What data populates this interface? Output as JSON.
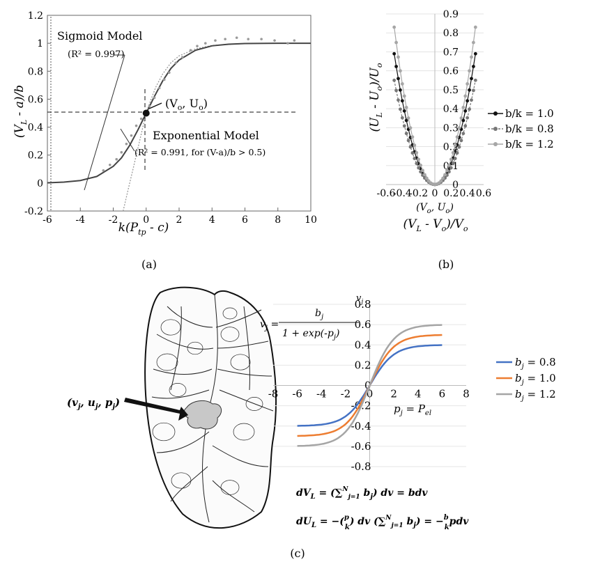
{
  "chart_data": [
    {
      "panel": "(a)",
      "type": "scatter",
      "xlabel_parts": {
        "k": "k",
        "P": "(P",
        "tp": "tp",
        "c": " - c)"
      },
      "ylabel_parts": {
        "open": "(V",
        "L": "L",
        "rest": " - a)/b"
      },
      "xlim": [
        -6,
        10
      ],
      "ylim": [
        -0.2,
        1.2
      ],
      "x_ticks": [
        "-6",
        "-4",
        "-2",
        "0",
        "2",
        "4",
        "6",
        "8",
        "10"
      ],
      "y_ticks": [
        "-0.2",
        "0",
        "0.2",
        "0.4",
        "0.6",
        "0.8",
        "1",
        "1.2"
      ],
      "annotations": {
        "sigmoid_title": "Sigmoid Model",
        "sigmoid_r2": "(R² = 0.997)",
        "point": "(V",
        "point_o": "o",
        "point_mid": ", U",
        "point_end": ")",
        "exp_title": "Exponential Model",
        "exp_r2": "(R² = 0.991, for (V-a)/b > 0.5)"
      },
      "highlight_point": {
        "x": 0,
        "y": 0.5
      },
      "sigmoid_curve": {
        "x": [
          -6,
          -5,
          -4,
          -3,
          -2,
          -1.5,
          -1,
          -0.5,
          0,
          0.5,
          1,
          1.5,
          2,
          3,
          4,
          5,
          6,
          8,
          10
        ],
        "y": [
          0.002,
          0.007,
          0.018,
          0.047,
          0.12,
          0.18,
          0.27,
          0.38,
          0.5,
          0.62,
          0.73,
          0.82,
          0.88,
          0.95,
          0.982,
          0.993,
          0.998,
          1.0,
          1.0
        ]
      },
      "exponential_curve": {
        "x": [
          -1.4,
          -1.2,
          -1,
          -0.8,
          -0.6,
          -0.4,
          -0.2,
          0,
          0.3,
          0.6,
          1,
          1.5,
          2,
          3,
          4,
          6,
          8
        ],
        "y": [
          -0.2,
          -0.1,
          0,
          0.1,
          0.2,
          0.3,
          0.4,
          0.5,
          0.6,
          0.69,
          0.78,
          0.86,
          0.91,
          0.96,
          0.985,
          0.998,
          1.0
        ]
      },
      "scatter_points": {
        "x": [
          -2.6,
          -2.2,
          -1.8,
          -1.5,
          -1.2,
          -0.9,
          -0.6,
          -0.3,
          0.2,
          0.5,
          0.8,
          1.1,
          1.4,
          1.8,
          2.2,
          2.7,
          3.1,
          3.6,
          4.2,
          4.8,
          5.5,
          6.2,
          7.0,
          7.8,
          8.6,
          9.0
        ],
        "y": [
          0.09,
          0.13,
          0.17,
          0.22,
          0.28,
          0.34,
          0.41,
          0.46,
          0.55,
          0.61,
          0.68,
          0.74,
          0.79,
          0.86,
          0.9,
          0.95,
          0.98,
          1.0,
          1.02,
          1.03,
          1.04,
          1.03,
          1.03,
          1.02,
          1.0,
          1.02
        ]
      }
    },
    {
      "panel": "(b)",
      "type": "line",
      "xlabel_parts": {
        "open": "(V",
        "L": "L",
        "mid": " - V",
        "o": "o",
        "end": ")/V",
        "o2": "o"
      },
      "ylabel_parts": {
        "open": "(U",
        "L": "L",
        "mid": " - U",
        "o": "o",
        "end": ")/U",
        "o2": "o"
      },
      "center_label": {
        "open": "(V",
        "o": "o",
        "mid": ", U",
        "o2": "o",
        "end": ")"
      },
      "xlim": [
        -0.6,
        0.6
      ],
      "ylim": [
        0,
        0.9
      ],
      "x_ticks": [
        "-0.6",
        "-0.4",
        "-0.2",
        "0",
        "0.2",
        "0.4",
        "0.6"
      ],
      "y_ticks": [
        "0",
        "0.1",
        "0.2",
        "0.3",
        "0.4",
        "0.5",
        "0.6",
        "0.7",
        "0.8",
        "0.9"
      ],
      "series": [
        {
          "name": "b/k = 1.0",
          "color": "#111111",
          "dash": false,
          "xmax": 0.5,
          "ymax": 0.69
        },
        {
          "name": "b/k = 0.8",
          "color": "#777777",
          "dash": true,
          "xmax": 0.5,
          "ymax": 0.55
        },
        {
          "name": "b/k = 1.2",
          "color": "#a6a6a6",
          "dash": false,
          "xmax": 0.5,
          "ymax": 0.83
        }
      ]
    },
    {
      "panel": "(c)",
      "type": "line",
      "xlabel_parts": {
        "p": "p",
        "j": "j",
        "eq": " = P",
        "el": "el"
      },
      "ylabel_parts": {
        "v": "v",
        "j": "j"
      },
      "formula": {
        "v": "v",
        "j": "j",
        "eq": " =",
        "num_b": "b",
        "num_j": "j",
        "den": "1 + exp(-p",
        "den_j": "j",
        "den_end": ")"
      },
      "xlim": [
        -8,
        8
      ],
      "ylim": [
        -0.8,
        0.8
      ],
      "x_ticks": [
        "-8",
        "-6",
        "-4",
        "-2",
        "0",
        "2",
        "4",
        "6",
        "8"
      ],
      "y_ticks": [
        "-0.8",
        "-0.6",
        "-0.4",
        "-0.2",
        "0",
        "0.2",
        "0.4",
        "0.6",
        "0.8"
      ],
      "x_range": [
        -6,
        6
      ],
      "series": [
        {
          "name_b": "b",
          "name_j": "j",
          "name_val": " = 0.8",
          "color": "#4472c4",
          "b": 0.4
        },
        {
          "name_b": "b",
          "name_j": "j",
          "name_val": " = 1.0",
          "color": "#ed7d31",
          "b": 0.5
        },
        {
          "name_b": "b",
          "name_j": "j",
          "name_val": " = 1.2",
          "color": "#a5a5a5",
          "b": 0.6
        }
      ]
    }
  ],
  "panel_labels": {
    "a": "(a)",
    "b": "(b)",
    "c": "(c)"
  },
  "leaf": {
    "label": "(v",
    "j1": "j",
    "c1": ", u",
    "j2": "j",
    "c2": ", p",
    "j3": "j",
    "end": ")"
  },
  "equations": {
    "eq1": {
      "lhs": "dV",
      "lhs_sub": "L",
      "eq": " = (∑",
      "sup": "N",
      "sub": "j=1",
      "b": " b",
      "bsub": "j",
      "rest": ") dv = bdv"
    },
    "eq2": {
      "lhs": "dU",
      "lhs_sub": "L",
      "eq": " = −(",
      "frac_num": "p",
      "frac_den": "k",
      "mid": ") dv (∑",
      "sup": "N",
      "sub": "j=1",
      "b": " b",
      "bsub": "j",
      "rest": ") = −",
      "frac2_num": "b",
      "frac2_den": "k",
      "end": "pdv"
    }
  },
  "colors": {
    "axis": "#222222",
    "grid": "#d9d9d9",
    "frame": "#666666",
    "leaf_fill": "#c8c8c8"
  }
}
